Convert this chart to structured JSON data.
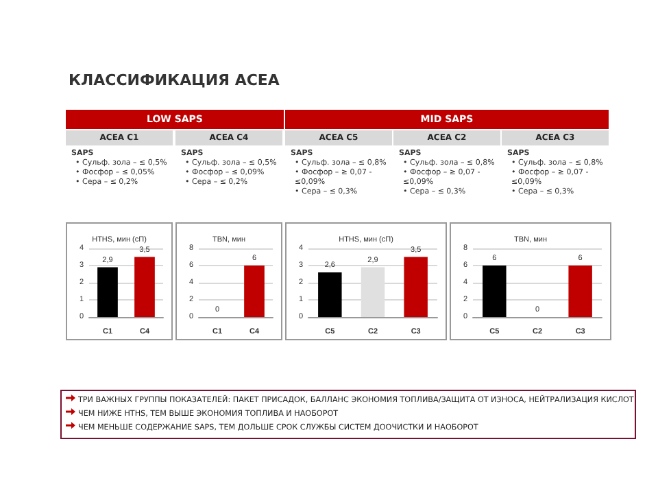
{
  "chart_data": [
    {
      "type": "other",
      "title": "КЛАССИФИКАЦИЯ ACEA",
      "annotations": [
        "LOW SAPS",
        "MID SAPS",
        "ACEA C1",
        "ACEA C4",
        "ACEA C5",
        "ACEA C2",
        "ACEA C3",
        "SAPS\n• Сульф. зола – ≤ 0,5%\n• Фосфор – ≤ 0,05%\n• Сера – ≤ 0,2%",
        "SAPS\n• Сульф. зола – ≤ 0,5%\n• Фосфор – ≤ 0,09%\n• Сера – ≤ 0,2%",
        "SAPS\n• Сульф. зола – ≤ 0,8%\n• Фосфор – ≥ 0,07 - ≤0,09%\n• Сера – ≤ 0,3%",
        "SAPS\n• Сульф. зола – ≤ 0,8%\n• Фосфор – ≥ 0,07 - ≤0,09%\n• Сера – ≤ 0,3%",
        "SAPS\n• Сульф. зола – ≤ 0,8%\n• Фосфор – ≥ 0,07 - ≤0,09%\n• Сера – ≤ 0,3%"
      ]
    },
    {
      "type": "bar",
      "title": "HTHS, мин (сП)",
      "categories": [
        "C1",
        "C4"
      ],
      "values": [
        2.9,
        3.5
      ],
      "colors": [
        "#000000",
        "#c00000"
      ],
      "value_labels": [
        "2,9",
        "3,5"
      ],
      "ylim": [
        0,
        4
      ],
      "yticks": [
        0,
        1,
        2,
        3,
        4
      ],
      "grid": "y"
    },
    {
      "type": "bar",
      "title": "TBN, мин",
      "categories": [
        "C1",
        "C4"
      ],
      "values": [
        0,
        6
      ],
      "colors": [
        "#000000",
        "#c00000"
      ],
      "value_labels": [
        "0",
        "6"
      ],
      "ylim": [
        0,
        8
      ],
      "yticks": [
        0,
        2,
        4,
        6,
        8
      ],
      "grid": "y"
    },
    {
      "type": "bar",
      "title": "HTHS, мин (сП)",
      "categories": [
        "C5",
        "C2",
        "C3"
      ],
      "values": [
        2.6,
        2.9,
        3.5
      ],
      "colors": [
        "#000000",
        "#e0e0e0",
        "#c00000"
      ],
      "value_labels": [
        "2,6",
        "2,9",
        "3,5"
      ],
      "ylim": [
        0,
        4
      ],
      "yticks": [
        0,
        1,
        2,
        3,
        4
      ],
      "grid": "y"
    },
    {
      "type": "bar",
      "title": "TBN, мин",
      "categories": [
        "C5",
        "C2",
        "C3"
      ],
      "values": [
        6,
        0,
        6
      ],
      "colors": [
        "#000000",
        "#e0e0e0",
        "#c00000"
      ],
      "value_labels": [
        "6",
        "0",
        "6"
      ],
      "ylim": [
        0,
        8
      ],
      "yticks": [
        0,
        2,
        4,
        6,
        8
      ],
      "grid": "y"
    },
    {
      "type": "other",
      "annotations": [
        "ТРИ ВАЖНЫХ ГРУППЫ ПОКАЗАТЕЛЕЙ: ПАКЕТ ПРИСАДОК, БАЛЛАНС ЭКОНОМИЯ ТОПЛИВА/ЗАЩИТА ОТ ИЗНОСА, НЕЙТРАЛИЗАЦИЯ КИСЛОТ",
        "ЧЕМ НИЖЕ HTHS, ТЕМ ВЫШЕ ЭКОНОМИЯ ТОПЛИВА И НАОБОРОТ",
        "ЧЕМ МЕНЬШЕ СОДЕРЖАНИЕ SAPS, ТЕМ ДОЛЬШЕ СРОК СЛУЖБЫ СИСТЕМ ДООЧИСТКИ И НАОБОРОТ"
      ]
    }
  ]
}
